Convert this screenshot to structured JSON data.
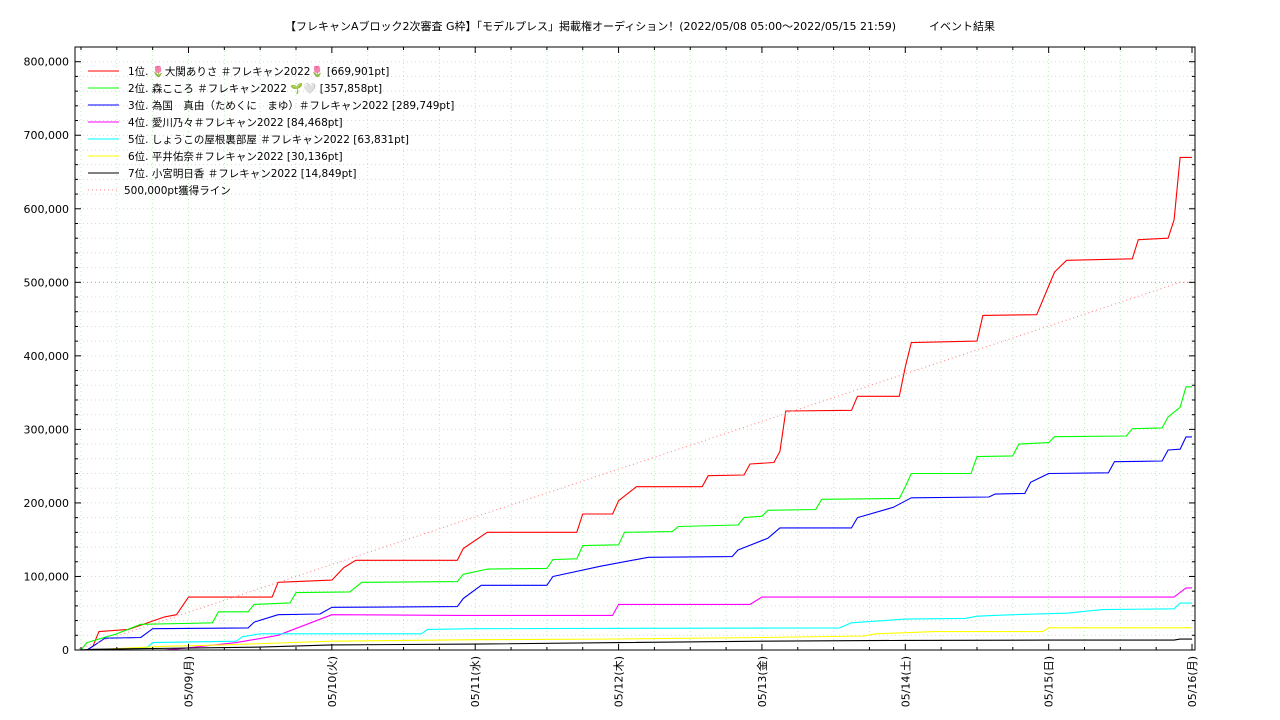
{
  "chart_data": {
    "type": "line",
    "title": "【フレキャンAブロック2次審査 G枠】「モデルプレス」掲載権オーディション！(2022/05/08 05:00〜2022/05/15 21:59)　　　イベント結果",
    "xlabel": "",
    "ylabel": "",
    "x_range": [
      "2022/05/08 05:00",
      "2022/05/16 00:30"
    ],
    "ylim": [
      0,
      820000
    ],
    "y_ticks": [
      0,
      100000,
      200000,
      300000,
      400000,
      500000,
      600000,
      700000,
      800000
    ],
    "y_tick_labels": [
      "0",
      "100,000",
      "200,000",
      "300,000",
      "400,000",
      "500,000",
      "600,000",
      "700,000",
      "800,000"
    ],
    "x_ticks": [
      "2022/05/09",
      "2022/05/10",
      "2022/05/11",
      "2022/05/12",
      "2022/05/13",
      "2022/05/14",
      "2022/05/15",
      "2022/05/16"
    ],
    "x_tick_labels": [
      "05/09(月)",
      "05/10(火)",
      "05/11(水)",
      "05/12(木)",
      "05/13(金)",
      "05/14(土)",
      "05/15(日)",
      "05/16(月)"
    ],
    "grid": true,
    "legend_position": "top-left",
    "series": [
      {
        "name": "1位. 🌷大関ありさ ＃フレキャン2022🌷 [669,901pt]",
        "color": "#ff0000",
        "points": [
          [
            "2022/05/08 07:00",
            0
          ],
          [
            "2022/05/08 08:00",
            5000
          ],
          [
            "2022/05/08 09:00",
            25000
          ],
          [
            "2022/05/08 14:00",
            28000
          ],
          [
            "2022/05/08 20:00",
            45000
          ],
          [
            "2022/05/08 22:00",
            48000
          ],
          [
            "2022/05/09 00:00",
            72000
          ],
          [
            "2022/05/09 14:00",
            72000
          ],
          [
            "2022/05/09 15:00",
            92000
          ],
          [
            "2022/05/10 00:00",
            95000
          ],
          [
            "2022/05/10 02:00",
            112000
          ],
          [
            "2022/05/10 04:00",
            122000
          ],
          [
            "2022/05/10 21:00",
            122000
          ],
          [
            "2022/05/10 22:00",
            138000
          ],
          [
            "2022/05/11 02:00",
            160000
          ],
          [
            "2022/05/11 17:00",
            160000
          ],
          [
            "2022/05/11 18:00",
            185000
          ],
          [
            "2022/05/11 23:00",
            185000
          ],
          [
            "2022/05/12 00:00",
            203000
          ],
          [
            "2022/05/12 03:00",
            222000
          ],
          [
            "2022/05/12 14:00",
            222000
          ],
          [
            "2022/05/12 15:00",
            237000
          ],
          [
            "2022/05/12 21:00",
            238000
          ],
          [
            "2022/05/12 22:00",
            253000
          ],
          [
            "2022/05/13 02:00",
            255000
          ],
          [
            "2022/05/13 03:00",
            270000
          ],
          [
            "2022/05/13 04:00",
            325000
          ],
          [
            "2022/05/13 15:00",
            326000
          ],
          [
            "2022/05/13 16:00",
            345000
          ],
          [
            "2022/05/13 23:00",
            345000
          ],
          [
            "2022/05/14 00:00",
            385000
          ],
          [
            "2022/05/14 01:00",
            418000
          ],
          [
            "2022/05/14 12:00",
            420000
          ],
          [
            "2022/05/14 13:00",
            455000
          ],
          [
            "2022/05/14 22:00",
            456000
          ],
          [
            "2022/05/15 00:00",
            495000
          ],
          [
            "2022/05/15 01:00",
            514000
          ],
          [
            "2022/05/15 03:00",
            530000
          ],
          [
            "2022/05/15 14:00",
            532000
          ],
          [
            "2022/05/15 15:00",
            558000
          ],
          [
            "2022/05/15 20:00",
            560000
          ],
          [
            "2022/05/15 21:00",
            585000
          ],
          [
            "2022/05/15 22:00",
            669901
          ],
          [
            "2022/05/16 00:00",
            669901
          ]
        ]
      },
      {
        "name": "2位. 森こころ ＃フレキャン2022 🌱🤍 [357,858pt]",
        "color": "#00ff00",
        "points": [
          [
            "2022/05/08 06:00",
            0
          ],
          [
            "2022/05/08 07:00",
            10000
          ],
          [
            "2022/05/08 12:00",
            22000
          ],
          [
            "2022/05/08 16:00",
            35000
          ],
          [
            "2022/05/08 23:00",
            36000
          ],
          [
            "2022/05/09 04:00",
            37000
          ],
          [
            "2022/05/09 05:00",
            52000
          ],
          [
            "2022/05/09 10:00",
            52000
          ],
          [
            "2022/05/09 11:00",
            62000
          ],
          [
            "2022/05/09 17:00",
            64000
          ],
          [
            "2022/05/09 18:00",
            78000
          ],
          [
            "2022/05/10 03:00",
            79000
          ],
          [
            "2022/05/10 05:00",
            92000
          ],
          [
            "2022/05/10 21:00",
            93000
          ],
          [
            "2022/05/10 22:00",
            103000
          ],
          [
            "2022/05/11 02:00",
            110000
          ],
          [
            "2022/05/11 12:00",
            111000
          ],
          [
            "2022/05/11 13:00",
            123000
          ],
          [
            "2022/05/11 17:00",
            124000
          ],
          [
            "2022/05/11 18:00",
            142000
          ],
          [
            "2022/05/12 00:00",
            143000
          ],
          [
            "2022/05/12 01:00",
            160000
          ],
          [
            "2022/05/12 09:00",
            161000
          ],
          [
            "2022/05/12 10:00",
            168000
          ],
          [
            "2022/05/12 20:00",
            170000
          ],
          [
            "2022/05/12 21:00",
            180000
          ],
          [
            "2022/05/13 00:00",
            182000
          ],
          [
            "2022/05/13 01:00",
            190000
          ],
          [
            "2022/05/13 09:00",
            191000
          ],
          [
            "2022/05/13 10:00",
            205000
          ],
          [
            "2022/05/13 23:00",
            206000
          ],
          [
            "2022/05/14 00:00",
            222000
          ],
          [
            "2022/05/14 01:00",
            240000
          ],
          [
            "2022/05/14 11:00",
            240000
          ],
          [
            "2022/05/14 12:00",
            263000
          ],
          [
            "2022/05/14 18:00",
            264000
          ],
          [
            "2022/05/14 19:00",
            280000
          ],
          [
            "2022/05/15 00:00",
            282000
          ],
          [
            "2022/05/15 01:00",
            290000
          ],
          [
            "2022/05/15 13:00",
            291000
          ],
          [
            "2022/05/15 14:00",
            301000
          ],
          [
            "2022/05/15 19:00",
            302000
          ],
          [
            "2022/05/15 20:00",
            317000
          ],
          [
            "2022/05/15 22:00",
            330000
          ],
          [
            "2022/05/15 23:00",
            357858
          ],
          [
            "2022/05/16 00:00",
            357858
          ]
        ]
      },
      {
        "name": "3位. 為国　真由（ためくに　まゆ）＃フレキャン2022 [289,749pt]",
        "color": "#0000ff",
        "points": [
          [
            "2022/05/08 05:30",
            0
          ],
          [
            "2022/05/08 07:00",
            0
          ],
          [
            "2022/05/08 08:00",
            5000
          ],
          [
            "2022/05/08 10:00",
            16000
          ],
          [
            "2022/05/08 16:00",
            17000
          ],
          [
            "2022/05/08 18:00",
            29000
          ],
          [
            "2022/05/09 10:00",
            30000
          ],
          [
            "2022/05/09 11:00",
            38000
          ],
          [
            "2022/05/09 15:00",
            48000
          ],
          [
            "2022/05/09 22:00",
            49000
          ],
          [
            "2022/05/10 00:00",
            58000
          ],
          [
            "2022/05/10 21:00",
            59000
          ],
          [
            "2022/05/10 22:00",
            70000
          ],
          [
            "2022/05/11 01:00",
            88000
          ],
          [
            "2022/05/11 12:00",
            88000
          ],
          [
            "2022/05/11 13:00",
            100000
          ],
          [
            "2022/05/11 21:00",
            114000
          ],
          [
            "2022/05/12 05:00",
            126000
          ],
          [
            "2022/05/12 19:00",
            127000
          ],
          [
            "2022/05/12 20:00",
            136000
          ],
          [
            "2022/05/13 01:00",
            152000
          ],
          [
            "2022/05/13 03:00",
            166000
          ],
          [
            "2022/05/13 15:00",
            166000
          ],
          [
            "2022/05/13 16:00",
            180000
          ],
          [
            "2022/05/13 22:00",
            194000
          ],
          [
            "2022/05/14 01:00",
            207000
          ],
          [
            "2022/05/14 14:00",
            208000
          ],
          [
            "2022/05/14 15:00",
            212000
          ],
          [
            "2022/05/14 20:00",
            213000
          ],
          [
            "2022/05/14 21:00",
            228000
          ],
          [
            "2022/05/15 00:00",
            240000
          ],
          [
            "2022/05/15 10:00",
            241000
          ],
          [
            "2022/05/15 11:00",
            256000
          ],
          [
            "2022/05/15 19:00",
            257000
          ],
          [
            "2022/05/15 20:00",
            272000
          ],
          [
            "2022/05/15 22:00",
            273000
          ],
          [
            "2022/05/15 23:00",
            289749
          ],
          [
            "2022/05/16 00:00",
            289749
          ]
        ]
      },
      {
        "name": "4位. 愛川乃々＃フレキャン2022 [84,468pt]",
        "color": "#ff00ff",
        "points": [
          [
            "2022/05/08 20:00",
            0
          ],
          [
            "2022/05/09 00:00",
            3000
          ],
          [
            "2022/05/09 08:00",
            10000
          ],
          [
            "2022/05/09 15:00",
            20000
          ],
          [
            "2022/05/10 00:00",
            48000
          ],
          [
            "2022/05/10 21:00",
            47000
          ],
          [
            "2022/05/11 23:00",
            47000
          ],
          [
            "2022/05/12 00:00",
            62000
          ],
          [
            "2022/05/12 22:00",
            62000
          ],
          [
            "2022/05/13 00:00",
            72000
          ],
          [
            "2022/05/15 21:00",
            72000
          ],
          [
            "2022/05/15 23:00",
            84468
          ],
          [
            "2022/05/16 00:00",
            84468
          ]
        ]
      },
      {
        "name": "5位. しょうこの屋根裏部屋 ＃フレキャン2022 [63,831pt]",
        "color": "#00ffff",
        "points": [
          [
            "2022/05/08 08:00",
            0
          ],
          [
            "2022/05/08 17:00",
            3000
          ],
          [
            "2022/05/08 18:00",
            10000
          ],
          [
            "2022/05/09 08:00",
            12000
          ],
          [
            "2022/05/09 09:00",
            18000
          ],
          [
            "2022/05/09 12:00",
            22000
          ],
          [
            "2022/05/10 15:00",
            22000
          ],
          [
            "2022/05/10 16:00",
            28000
          ],
          [
            "2022/05/11 00:00",
            29000
          ],
          [
            "2022/05/13 13:00",
            30000
          ],
          [
            "2022/05/13 15:00",
            37000
          ],
          [
            "2022/05/14 00:00",
            42000
          ],
          [
            "2022/05/14 10:00",
            43000
          ],
          [
            "2022/05/14 12:00",
            46000
          ],
          [
            "2022/05/14 18:00",
            48000
          ],
          [
            "2022/05/15 03:00",
            50000
          ],
          [
            "2022/05/15 09:00",
            55000
          ],
          [
            "2022/05/15 21:00",
            56000
          ],
          [
            "2022/05/15 22:00",
            63831
          ],
          [
            "2022/05/16 00:00",
            63831
          ]
        ]
      },
      {
        "name": "6位. 平井佑奈＃フレキャン2022 [30,136pt]",
        "color": "#ffff00",
        "points": [
          [
            "2022/05/08 07:00",
            0
          ],
          [
            "2022/05/08 20:00",
            5000
          ],
          [
            "2022/05/09 06:00",
            7000
          ],
          [
            "2022/05/10 00:00",
            12000
          ],
          [
            "2022/05/11 00:00",
            14000
          ],
          [
            "2022/05/12 00:00",
            15000
          ],
          [
            "2022/05/13 00:00",
            17000
          ],
          [
            "2022/05/13 17:00",
            19000
          ],
          [
            "2022/05/13 19:00",
            22000
          ],
          [
            "2022/05/14 05:00",
            25000
          ],
          [
            "2022/05/14 23:00",
            25000
          ],
          [
            "2022/05/15 00:00",
            30136
          ],
          [
            "2022/05/16 00:00",
            30136
          ]
        ]
      },
      {
        "name": "7位. 小宮明日香 ＃フレキャン2022 [14,849pt]",
        "color": "#000000",
        "points": [
          [
            "2022/05/08 05:30",
            0
          ],
          [
            "2022/05/08 08:00",
            1000
          ],
          [
            "2022/05/08 18:00",
            2000
          ],
          [
            "2022/05/09 12:00",
            4000
          ],
          [
            "2022/05/10 00:00",
            7000
          ],
          [
            "2022/05/11 00:00",
            8000
          ],
          [
            "2022/05/12 00:00",
            10000
          ],
          [
            "2022/05/13 00:00",
            12000
          ],
          [
            "2022/05/14 00:00",
            13000
          ],
          [
            "2022/05/15 00:00",
            13500
          ],
          [
            "2022/05/15 21:00",
            13500
          ],
          [
            "2022/05/15 22:00",
            14849
          ],
          [
            "2022/05/16 00:00",
            14849
          ]
        ]
      },
      {
        "name": "500,000pt獲得ライン",
        "color": "#ff8888",
        "dashed": true,
        "points": [
          [
            "2022/05/08 05:00",
            0
          ],
          [
            "2022/05/15 22:00",
            500000
          ],
          [
            "2022/05/16 00:00",
            500000
          ]
        ]
      }
    ],
    "reference_lines": [
      {
        "y": 500000,
        "color": "#ff8888",
        "dashed": true
      }
    ]
  }
}
